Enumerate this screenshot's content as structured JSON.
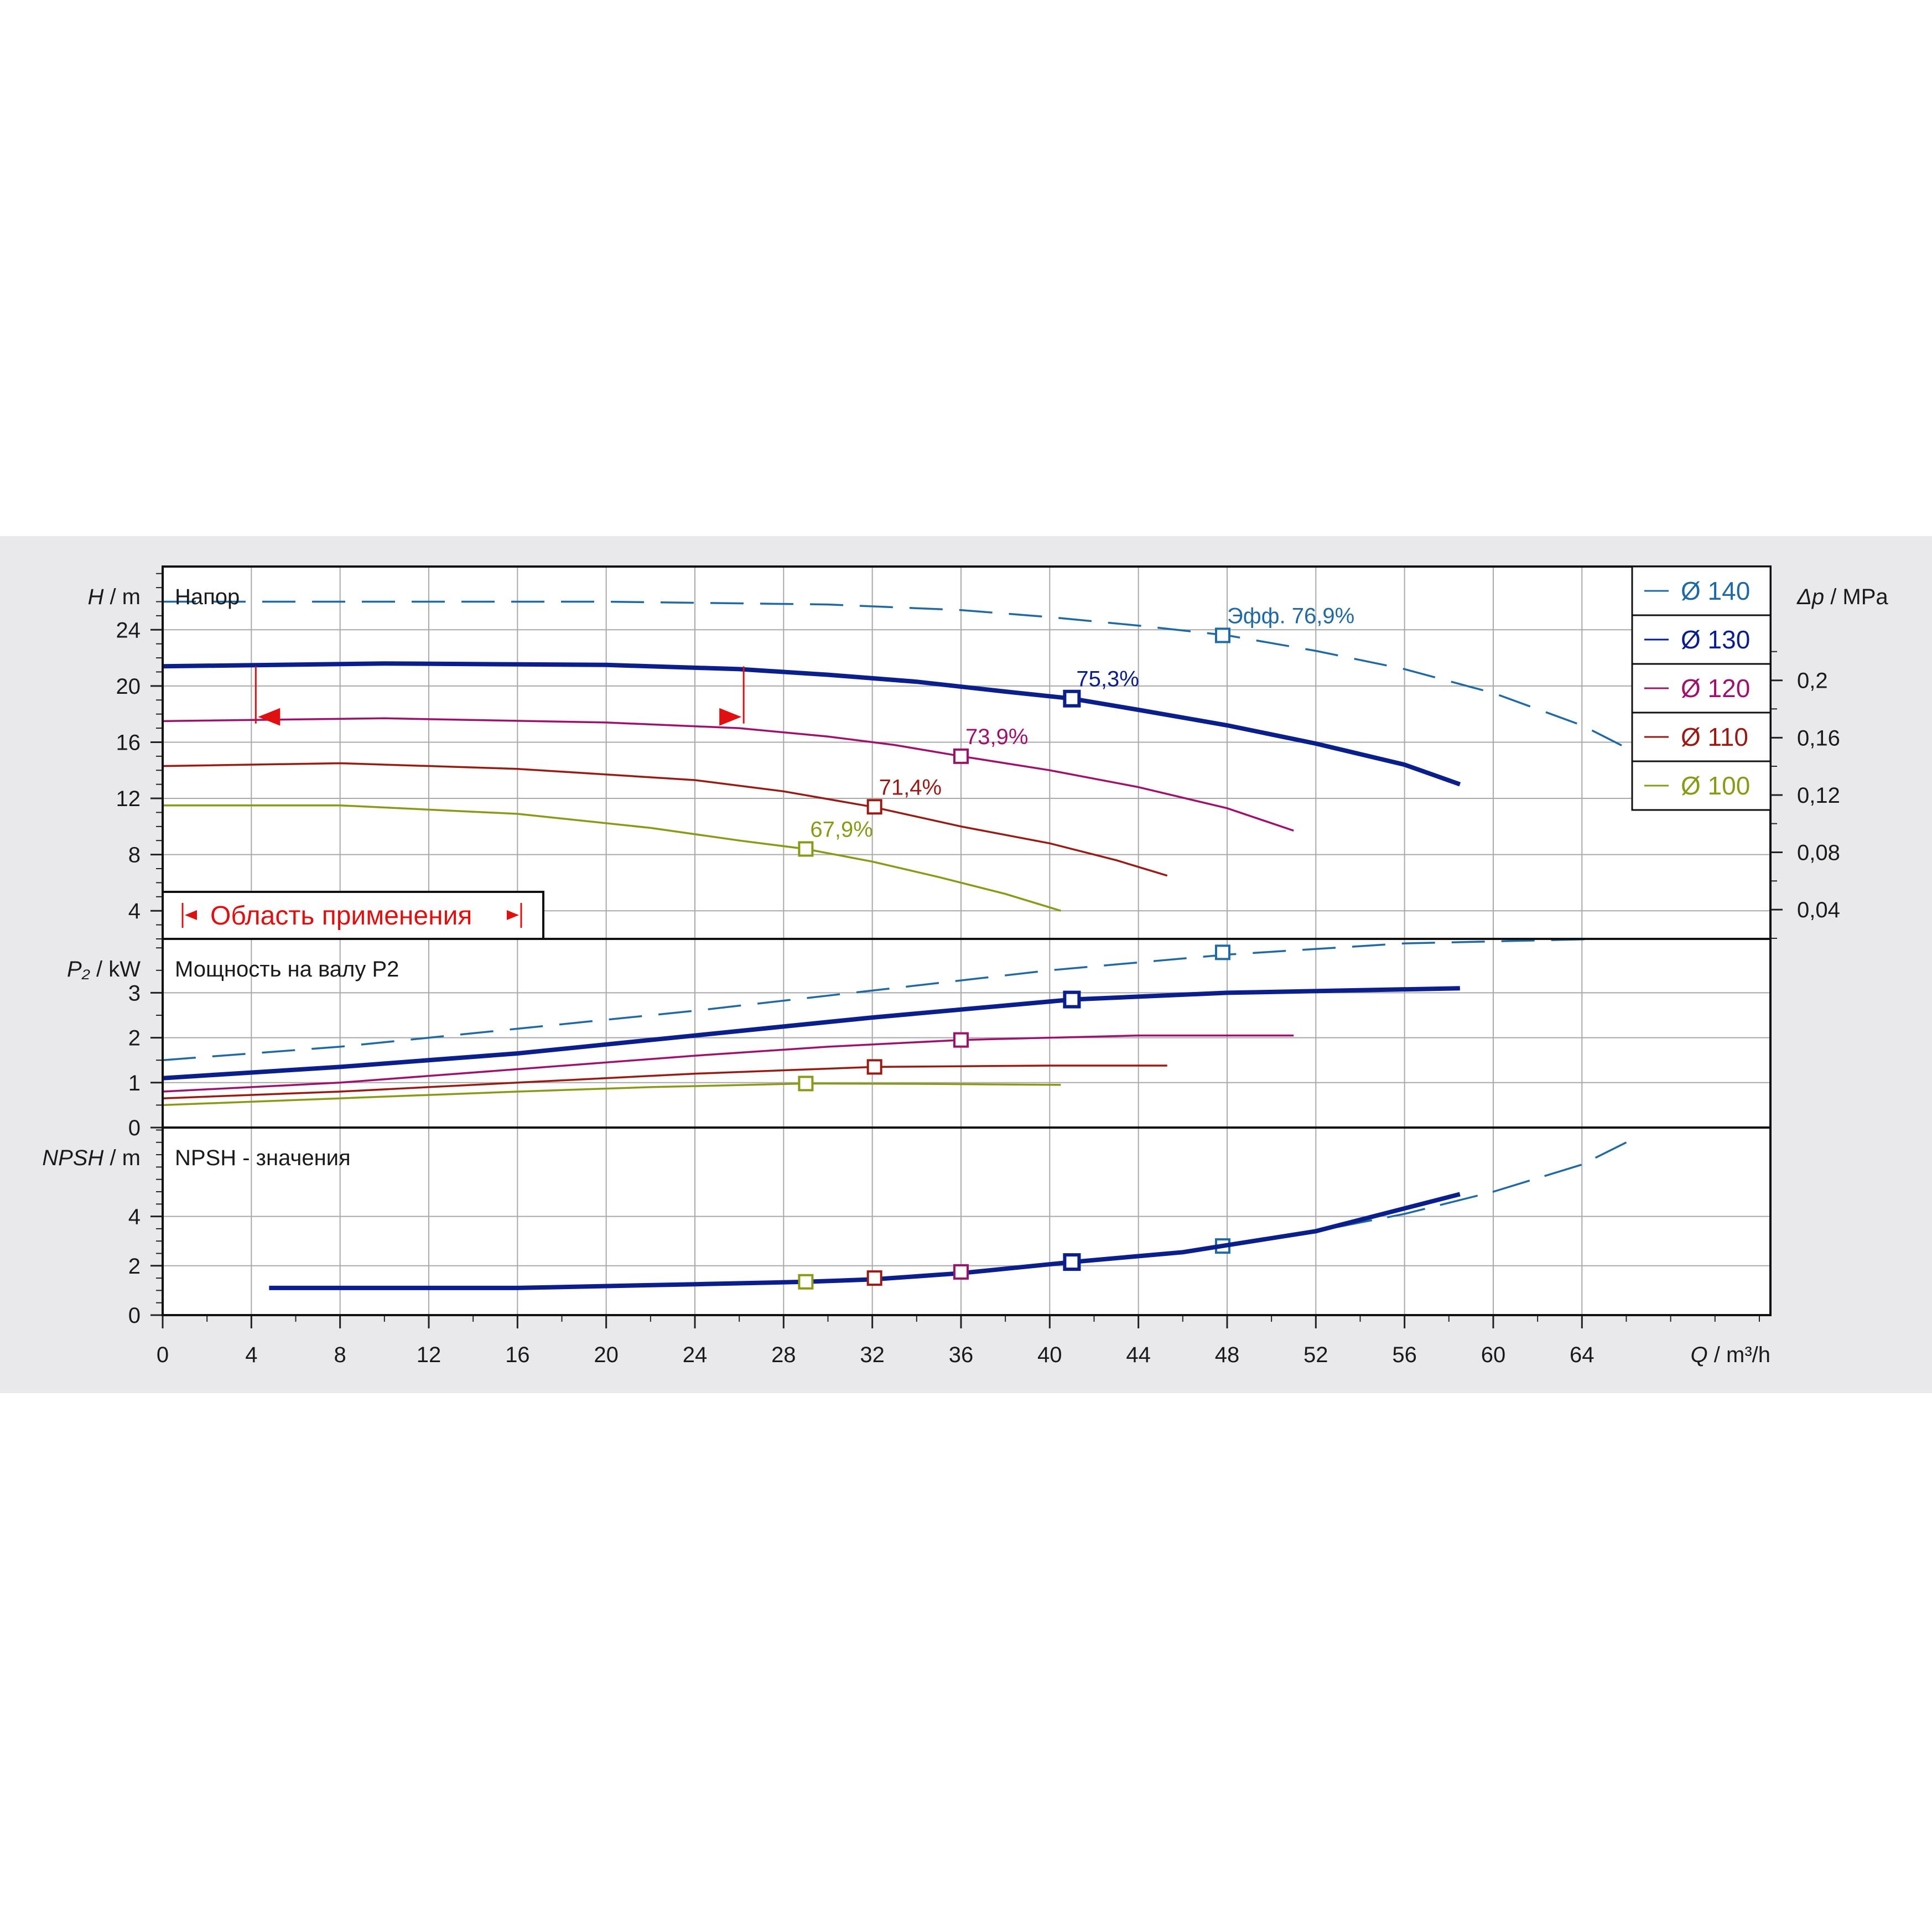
{
  "chart_data": {
    "type": "line",
    "x_axis": {
      "label_var": "Q",
      "label_unit": "/ m³/h",
      "ticks": [
        0,
        4,
        8,
        12,
        16,
        20,
        24,
        28,
        32,
        36,
        40,
        44,
        48,
        52,
        56,
        60,
        64
      ],
      "range": [
        0,
        72.5
      ]
    },
    "legend": [
      {
        "name": "Ø 140",
        "color": "#1f6aa5"
      },
      {
        "name": "Ø 130",
        "color": "#0a1e8c"
      },
      {
        "name": "Ø 120",
        "color": "#a0106e"
      },
      {
        "name": "Ø 110",
        "color": "#9a1a14"
      },
      {
        "name": "Ø 100",
        "color": "#8a9a14"
      }
    ],
    "panels": [
      {
        "id": "head",
        "title": "Напор",
        "y_var": "H",
        "y_unit": "/ m",
        "y_range": [
          2,
          28.5
        ],
        "y_ticks": [
          4,
          8,
          12,
          16,
          20,
          24
        ],
        "y2_var": "Δp",
        "y2_unit": "/ MPa",
        "y2_ticks": [
          "0,04",
          "0,08",
          "0,12",
          "0,16",
          "0,2"
        ],
        "y2_tick_values": [
          4.08,
          8.16,
          12.24,
          16.32,
          20.4
        ],
        "area_label": "Область применения",
        "area_range": [
          4.2,
          26.2
        ],
        "series": [
          {
            "name": "Ø 140",
            "points": [
              [
                0,
                26.0
              ],
              [
                10,
                26.0
              ],
              [
                20,
                26.0
              ],
              [
                30,
                25.8
              ],
              [
                36,
                25.4
              ],
              [
                40,
                24.9
              ],
              [
                44,
                24.3
              ],
              [
                48,
                23.6
              ],
              [
                52,
                22.5
              ],
              [
                56,
                21.2
              ],
              [
                60,
                19.5
              ],
              [
                64,
                17.2
              ],
              [
                66,
                15.6
              ]
            ],
            "bep": [
              47.8,
              23.6
            ],
            "eff": "Эфф.  76,9%"
          },
          {
            "name": "Ø 130",
            "points": [
              [
                0,
                21.4
              ],
              [
                10,
                21.6
              ],
              [
                20,
                21.5
              ],
              [
                26,
                21.2
              ],
              [
                30,
                20.8
              ],
              [
                34,
                20.3
              ],
              [
                38,
                19.6
              ],
              [
                41,
                19.1
              ],
              [
                44,
                18.3
              ],
              [
                48,
                17.2
              ],
              [
                52,
                15.9
              ],
              [
                56,
                14.4
              ],
              [
                58.5,
                13.0
              ]
            ],
            "bep": [
              41,
              19.1
            ],
            "eff": "75,3%"
          },
          {
            "name": "Ø 120",
            "points": [
              [
                0,
                17.5
              ],
              [
                10,
                17.7
              ],
              [
                20,
                17.4
              ],
              [
                26,
                17.0
              ],
              [
                30,
                16.4
              ],
              [
                33,
                15.8
              ],
              [
                36,
                15.0
              ],
              [
                40,
                14.0
              ],
              [
                44,
                12.8
              ],
              [
                48,
                11.3
              ],
              [
                51,
                9.7
              ]
            ],
            "bep": [
              36,
              15.0
            ],
            "eff": "73,9%"
          },
          {
            "name": "Ø 110",
            "points": [
              [
                0,
                14.3
              ],
              [
                8,
                14.5
              ],
              [
                16,
                14.1
              ],
              [
                24,
                13.3
              ],
              [
                28,
                12.5
              ],
              [
                32,
                11.4
              ],
              [
                36,
                10.0
              ],
              [
                40,
                8.8
              ],
              [
                43,
                7.6
              ],
              [
                45.3,
                6.5
              ]
            ],
            "bep": [
              32.1,
              11.4
            ],
            "eff": "71,4%"
          },
          {
            "name": "Ø 100",
            "points": [
              [
                0,
                11.5
              ],
              [
                8,
                11.5
              ],
              [
                16,
                10.9
              ],
              [
                22,
                9.9
              ],
              [
                26,
                9.0
              ],
              [
                29,
                8.4
              ],
              [
                32,
                7.5
              ],
              [
                35,
                6.4
              ],
              [
                38,
                5.2
              ],
              [
                40.5,
                4.0
              ]
            ],
            "bep": [
              29,
              8.4
            ],
            "eff": "67,9%"
          }
        ]
      },
      {
        "id": "power",
        "title": "Мощность на валу P2",
        "y_var": "P₂",
        "y_unit": "/ kW",
        "y_range": [
          0,
          4.2
        ],
        "y_ticks": [
          0,
          1,
          2,
          3
        ],
        "series": [
          {
            "name": "Ø 140",
            "points": [
              [
                0,
                1.5
              ],
              [
                8,
                1.8
              ],
              [
                16,
                2.2
              ],
              [
                24,
                2.6
              ],
              [
                32,
                3.05
              ],
              [
                40,
                3.5
              ],
              [
                48,
                3.85
              ],
              [
                56,
                4.1
              ],
              [
                65,
                4.2
              ]
            ],
            "bep": [
              47.8,
              3.9
            ]
          },
          {
            "name": "Ø 130",
            "points": [
              [
                0,
                1.1
              ],
              [
                8,
                1.35
              ],
              [
                16,
                1.65
              ],
              [
                24,
                2.05
              ],
              [
                32,
                2.45
              ],
              [
                41,
                2.85
              ],
              [
                48,
                3.0
              ],
              [
                58.5,
                3.1
              ]
            ],
            "bep": [
              41,
              2.85
            ]
          },
          {
            "name": "Ø 120",
            "points": [
              [
                0,
                0.8
              ],
              [
                8,
                1.0
              ],
              [
                16,
                1.3
              ],
              [
                24,
                1.6
              ],
              [
                30,
                1.8
              ],
              [
                36,
                1.95
              ],
              [
                44,
                2.05
              ],
              [
                51,
                2.05
              ]
            ],
            "bep": [
              36,
              1.95
            ]
          },
          {
            "name": "Ø 110",
            "points": [
              [
                0,
                0.65
              ],
              [
                8,
                0.8
              ],
              [
                16,
                1.0
              ],
              [
                24,
                1.2
              ],
              [
                32.1,
                1.35
              ],
              [
                40,
                1.38
              ],
              [
                45.3,
                1.38
              ]
            ],
            "bep": [
              32.1,
              1.35
            ]
          },
          {
            "name": "Ø 100",
            "points": [
              [
                0,
                0.5
              ],
              [
                8,
                0.65
              ],
              [
                16,
                0.8
              ],
              [
                22,
                0.9
              ],
              [
                29,
                0.98
              ],
              [
                35,
                0.97
              ],
              [
                40.5,
                0.95
              ]
            ],
            "bep": [
              29,
              0.98
            ]
          }
        ]
      },
      {
        "id": "npsh",
        "title": "NPSH - значения",
        "y_var": "NPSH",
        "y_unit": "/ m",
        "y_range": [
          0,
          7.6
        ],
        "y_ticks": [
          0,
          2,
          4
        ],
        "series": [
          {
            "name": "Ø 140",
            "points": [
              [
                48,
                2.8
              ],
              [
                52,
                3.4
              ],
              [
                56,
                4.1
              ],
              [
                60,
                5.0
              ],
              [
                64,
                6.1
              ],
              [
                66,
                7.0
              ]
            ],
            "bep": [
              47.8,
              2.8
            ]
          },
          {
            "name": "Ø 130",
            "points": [
              [
                4.8,
                1.1
              ],
              [
                16,
                1.1
              ],
              [
                24,
                1.25
              ],
              [
                29,
                1.35
              ],
              [
                32.1,
                1.45
              ],
              [
                36,
                1.7
              ],
              [
                41,
                2.15
              ],
              [
                46,
                2.55
              ],
              [
                52,
                3.4
              ],
              [
                58.5,
                4.9
              ]
            ],
            "bep": [
              41,
              2.15
            ]
          },
          {
            "name": "Ø 120",
            "points": [
              [
                36,
                1.75
              ]
            ],
            "bep": [
              36,
              1.75
            ]
          },
          {
            "name": "Ø 110",
            "points": [
              [
                32.1,
                1.5
              ]
            ],
            "bep": [
              32.1,
              1.5
            ]
          },
          {
            "name": "Ø 100",
            "points": [
              [
                29,
                1.35
              ]
            ],
            "bep": [
              29,
              1.35
            ]
          }
        ]
      }
    ]
  }
}
